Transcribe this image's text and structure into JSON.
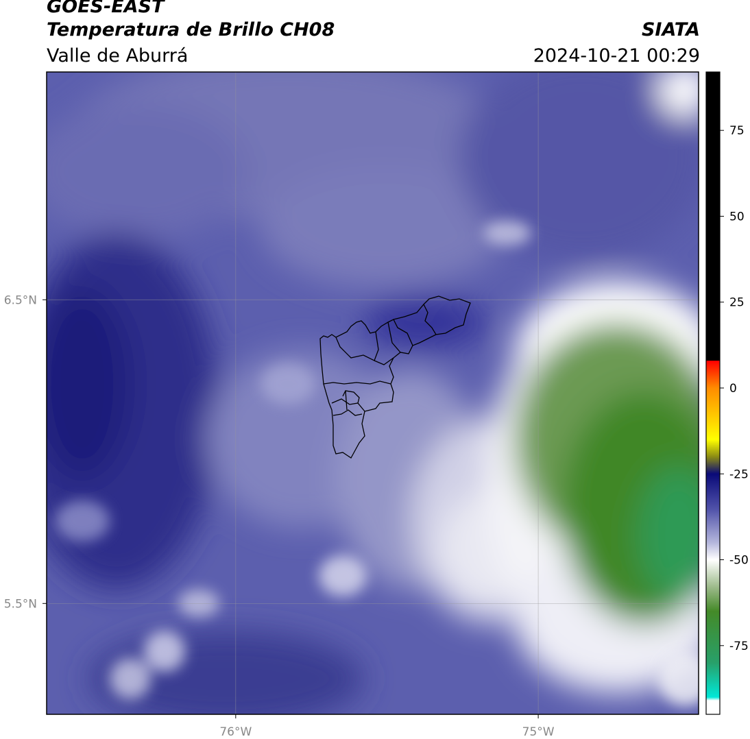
{
  "header": {
    "satellite": "GOES-EAST",
    "product": "Temperatura de Brillo CH08",
    "region": "Valle de Aburrá",
    "organization": "SIATA",
    "timestamp": "2024-10-21 00:29"
  },
  "map": {
    "lat_ticks": [
      {
        "value": 6.5,
        "label": "6.5°N"
      },
      {
        "value": 5.5,
        "label": "5.5°N"
      }
    ],
    "lon_ticks": [
      {
        "value": -76,
        "label": "76°W"
      },
      {
        "value": -75,
        "label": "75°W"
      }
    ],
    "extent": {
      "lon_min": -76.625,
      "lon_max": -74.47,
      "lat_min": 5.135,
      "lat_max": 7.25
    }
  },
  "colorbar": {
    "ticks": [
      {
        "value": 75,
        "label": "75"
      },
      {
        "value": 50,
        "label": "50"
      },
      {
        "value": 25,
        "label": "25"
      },
      {
        "value": 0,
        "label": "0"
      },
      {
        "value": -25,
        "label": "-25"
      },
      {
        "value": -50,
        "label": "-50"
      },
      {
        "value": -75,
        "label": "-75"
      }
    ],
    "range": [
      -95,
      92
    ],
    "stops": [
      {
        "value": 92,
        "color": "#000000"
      },
      {
        "value": 8,
        "color": "#000000"
      },
      {
        "value": 7.9,
        "color": "#ff0000"
      },
      {
        "value": 0,
        "color": "#ff8c00"
      },
      {
        "value": -10,
        "color": "#ffd700"
      },
      {
        "value": -15,
        "color": "#ffff00"
      },
      {
        "value": -20,
        "color": "#8c8c14"
      },
      {
        "value": -25,
        "color": "#0a0a78"
      },
      {
        "value": -35,
        "color": "#4e50a8"
      },
      {
        "value": -45,
        "color": "#b4b6dc"
      },
      {
        "value": -50,
        "color": "#ffffff"
      },
      {
        "value": -58,
        "color": "#9cba8a"
      },
      {
        "value": -65,
        "color": "#448a28"
      },
      {
        "value": -80,
        "color": "#28a06a"
      },
      {
        "value": -90,
        "color": "#00e8d8"
      },
      {
        "value": -91,
        "color": "#ffffff"
      },
      {
        "value": -95,
        "color": "#ffffff"
      }
    ]
  }
}
